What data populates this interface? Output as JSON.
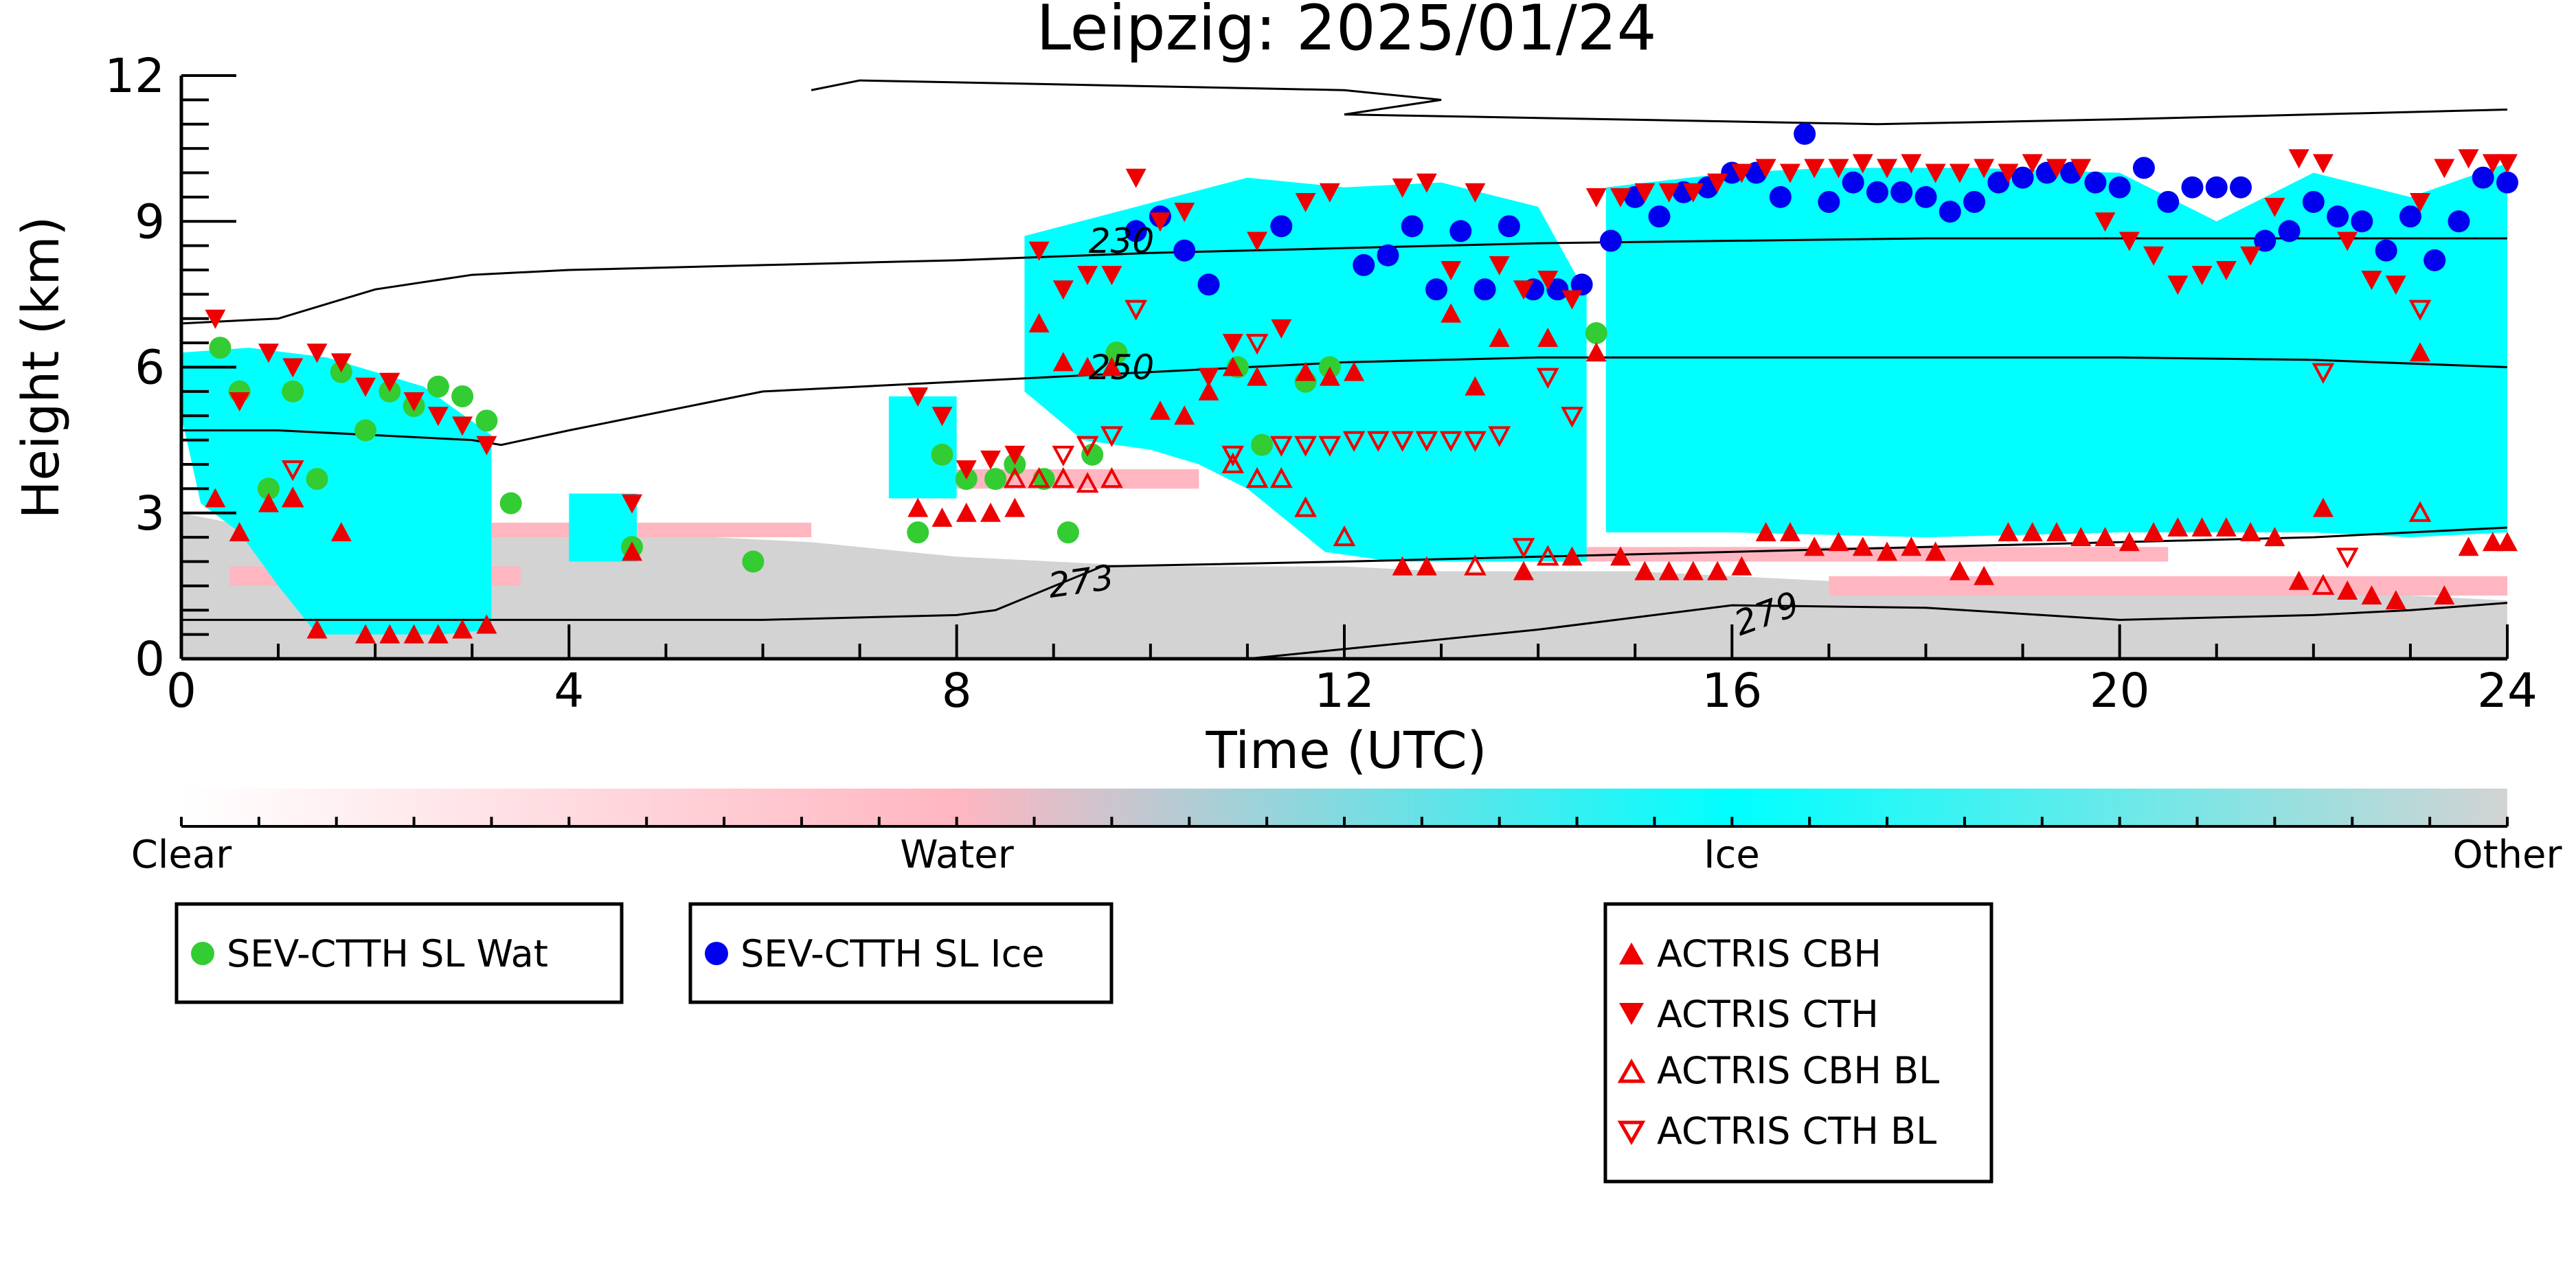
{
  "chart_data": {
    "type": "scatter",
    "title": "Leipzig: 2025/01/24",
    "xlabel": "Time (UTC)",
    "ylabel": "Height (km)",
    "xlim": [
      0,
      24
    ],
    "ylim": [
      0,
      12
    ],
    "xticks": [
      "0",
      "4",
      "8",
      "12",
      "16",
      "20",
      "24"
    ],
    "yticks": [
      "0",
      "3",
      "6",
      "9",
      "12"
    ],
    "colorbar": {
      "labels": [
        "Clear",
        "Water",
        "Ice",
        "Other"
      ],
      "colors": [
        "#ffffff",
        "#ffb6c1",
        "#00ffff",
        "#d3d3d3"
      ]
    },
    "background_classes": [
      {
        "name": "Other",
        "color": "#d3d3d3",
        "x": [
          0,
          0.5,
          1.5,
          2.5,
          3.5,
          4.5,
          5.5,
          6.5,
          7.5,
          8.0,
          9.0,
          10.0,
          11.0,
          12.0,
          13.0,
          14.0,
          15.0,
          16.0,
          17.0,
          18.0,
          19.0,
          20.0,
          21.0,
          22.0,
          23.0,
          24.0
        ],
        "top": [
          3.0,
          2.8,
          2.6,
          2.8,
          2.7,
          2.6,
          2.5,
          2.4,
          2.2,
          2.1,
          2.0,
          1.9,
          1.9,
          1.9,
          1.8,
          1.8,
          1.8,
          1.7,
          1.6,
          1.5,
          1.5,
          1.4,
          1.4,
          1.3,
          1.3,
          1.2
        ]
      },
      {
        "name": "Water",
        "color": "#ffb6c1",
        "bands": [
          {
            "x": [
              0.5,
              3.5
            ],
            "y": [
              1.5,
              1.9
            ]
          },
          {
            "x": [
              3.0,
              6.5
            ],
            "y": [
              2.5,
              2.8
            ]
          },
          {
            "x": [
              7.5,
              10.5
            ],
            "y": [
              3.5,
              3.9
            ]
          },
          {
            "x": [
              12.5,
              20.5
            ],
            "y": [
              2.0,
              2.3
            ]
          },
          {
            "x": [
              17.0,
              24.0
            ],
            "y": [
              1.3,
              1.7
            ]
          }
        ]
      },
      {
        "name": "Ice",
        "color": "#00ffff",
        "polygons": [
          {
            "x": [
              0.0,
              0.7,
              1.5,
              2.5,
              3.2,
              3.2,
              2.7,
              2.0,
              1.4,
              1.0,
              0.6,
              0.2,
              0.0
            ],
            "y": [
              6.3,
              6.4,
              6.2,
              5.6,
              4.6,
              0.6,
              0.5,
              0.5,
              0.5,
              1.5,
              2.6,
              3.2,
              5.0
            ]
          },
          {
            "x": [
              4.0,
              4.7,
              4.7,
              4.0
            ],
            "y": [
              3.4,
              3.4,
              2.0,
              2.0
            ]
          },
          {
            "x": [
              7.3,
              8.0,
              8.0,
              7.3
            ],
            "y": [
              5.4,
              5.4,
              3.3,
              3.3
            ]
          },
          {
            "x": [
              8.7,
              11.0,
              12.0,
              13.0,
              14.0,
              14.5,
              14.5,
              13.5,
              12.5,
              11.8,
              11.0,
              10.5,
              10.0,
              9.3,
              8.7
            ],
            "y": [
              8.7,
              9.9,
              9.7,
              9.8,
              9.3,
              7.5,
              2.0,
              2.0,
              2.0,
              2.2,
              3.5,
              4.0,
              4.3,
              4.5,
              5.5
            ]
          },
          {
            "x": [
              14.7,
              16.0,
              17.0,
              18.5,
              20.0,
              21.0,
              22.0,
              23.0,
              24.0,
              24.0,
              23.0,
              22.0,
              20.0,
              18.0,
              16.0,
              14.7
            ],
            "y": [
              9.7,
              10.0,
              10.1,
              10.1,
              10.0,
              9.0,
              10.0,
              9.5,
              10.2,
              2.6,
              2.5,
              2.6,
              2.6,
              2.5,
              2.6,
              2.6
            ]
          }
        ]
      }
    ],
    "isotherms": [
      {
        "label": "230",
        "x": [
          0,
          1,
          2,
          3,
          4,
          6,
          8,
          10,
          12,
          14,
          16,
          18,
          20,
          22,
          24
        ],
        "y": [
          6.9,
          7.0,
          7.6,
          7.9,
          8.0,
          8.1,
          8.2,
          8.35,
          8.45,
          8.55,
          8.6,
          8.65,
          8.65,
          8.65,
          8.65
        ]
      },
      {
        "label": "250",
        "x": [
          0,
          1,
          2,
          3,
          3.3,
          4,
          6,
          8,
          10,
          12,
          14,
          16,
          18,
          20,
          22,
          24
        ],
        "y": [
          4.7,
          4.7,
          4.6,
          4.5,
          4.4,
          4.7,
          5.5,
          5.7,
          5.9,
          6.1,
          6.2,
          6.2,
          6.2,
          6.2,
          6.15,
          6.0
        ]
      },
      {
        "label": "273",
        "x": [
          0,
          2,
          4,
          6,
          8,
          8.4,
          9.5,
          12,
          14,
          16,
          18,
          20,
          22,
          24
        ],
        "y": [
          0.8,
          0.8,
          0.8,
          0.8,
          0.9,
          1.0,
          1.9,
          2.0,
          2.1,
          2.2,
          2.3,
          2.4,
          2.5,
          2.7
        ]
      },
      {
        "label": "279",
        "x": [
          11,
          14,
          16,
          18,
          20,
          22,
          23,
          24
        ],
        "y": [
          0.0,
          0.6,
          1.1,
          1.05,
          0.8,
          0.9,
          1.0,
          1.15
        ]
      }
    ],
    "upper_contour": {
      "x": [
        6.5,
        7.0,
        12.0,
        13.0,
        12.0,
        17.5,
        20.0,
        24.0
      ],
      "y": [
        11.7,
        11.9,
        11.7,
        11.5,
        11.2,
        11.0,
        11.1,
        11.3
      ]
    },
    "series": [
      {
        "name": "SEV-CTTH SL Wat",
        "marker": "circle",
        "color": "#33cc33",
        "x": [
          0.4,
          0.6,
          0.9,
          1.15,
          1.4,
          1.65,
          1.9,
          2.15,
          2.4,
          2.65,
          2.9,
          3.15,
          3.4,
          4.65,
          5.9,
          7.6,
          7.85,
          8.1,
          8.4,
          8.6,
          8.9,
          9.15,
          9.4,
          9.65,
          10.9,
          11.15,
          11.6,
          11.85,
          14.6
        ],
        "y": [
          6.4,
          5.5,
          3.5,
          5.5,
          3.7,
          5.9,
          4.7,
          5.5,
          5.2,
          5.6,
          5.4,
          4.9,
          3.2,
          2.3,
          2.0,
          2.6,
          4.2,
          3.7,
          3.7,
          4.0,
          3.7,
          2.6,
          4.2,
          6.3,
          6.0,
          4.4,
          5.7,
          6.0,
          6.7
        ]
      },
      {
        "name": "SEV-CTTH SL Ice",
        "marker": "circle",
        "color": "#0000ee",
        "x": [
          9.85,
          10.1,
          10.35,
          10.6,
          11.35,
          12.2,
          12.45,
          12.7,
          12.95,
          13.2,
          13.45,
          13.7,
          13.95,
          14.2,
          14.45,
          14.75,
          15.0,
          15.25,
          15.5,
          15.75,
          16.0,
          16.25,
          16.5,
          16.75,
          17.0,
          17.25,
          17.5,
          17.75,
          18.0,
          18.25,
          18.5,
          18.75,
          19.0,
          19.25,
          19.5,
          19.75,
          20.0,
          20.25,
          20.5,
          20.75,
          21.0,
          21.25,
          21.5,
          21.75,
          22.0,
          22.25,
          22.5,
          22.75,
          23.0,
          23.25,
          23.5,
          23.75,
          24.0
        ],
        "y": [
          8.8,
          9.1,
          8.4,
          7.7,
          8.9,
          8.1,
          8.3,
          8.9,
          7.6,
          8.8,
          7.6,
          8.9,
          7.6,
          7.6,
          7.7,
          8.6,
          9.5,
          9.1,
          9.6,
          9.7,
          10.0,
          10.0,
          9.5,
          10.8,
          9.4,
          9.8,
          9.6,
          9.6,
          9.5,
          9.2,
          9.4,
          9.8,
          9.9,
          10.0,
          10.0,
          9.8,
          9.7,
          10.1,
          9.4,
          9.7,
          9.7,
          9.7,
          8.6,
          8.8,
          9.4,
          9.1,
          9.0,
          8.4,
          9.1,
          8.2,
          9.0,
          9.9,
          9.8
        ]
      },
      {
        "name": "ACTRIS CBH",
        "marker": "triangle-up-filled",
        "color": "#ee0000",
        "x": [
          0.35,
          0.6,
          0.9,
          1.15,
          1.4,
          1.65,
          1.9,
          2.15,
          2.4,
          2.65,
          2.9,
          3.15,
          4.65,
          7.6,
          7.85,
          8.1,
          8.35,
          8.6,
          8.85,
          9.1,
          9.35,
          9.6,
          10.1,
          10.35,
          10.6,
          10.85,
          11.1,
          11.6,
          11.85,
          12.1,
          12.6,
          12.85,
          13.1,
          13.35,
          13.6,
          13.85,
          14.1,
          14.35,
          14.6,
          14.85,
          15.1,
          15.35,
          15.6,
          15.85,
          16.1,
          16.35,
          16.6,
          16.85,
          17.1,
          17.35,
          17.6,
          17.85,
          18.1,
          18.35,
          18.6,
          18.85,
          19.1,
          19.35,
          19.6,
          19.85,
          20.1,
          20.35,
          20.6,
          20.85,
          21.1,
          21.35,
          21.6,
          21.85,
          22.1,
          22.35,
          22.6,
          22.85,
          23.1,
          23.35,
          23.6,
          23.85,
          24.0
        ],
        "y": [
          3.3,
          2.6,
          3.2,
          3.3,
          0.6,
          2.6,
          0.5,
          0.5,
          0.5,
          0.5,
          0.6,
          0.7,
          2.2,
          3.1,
          2.9,
          3.0,
          3.0,
          3.1,
          6.9,
          6.1,
          6.0,
          6.0,
          5.1,
          5.0,
          5.5,
          6.0,
          5.8,
          5.9,
          5.8,
          5.9,
          1.9,
          1.9,
          7.1,
          5.6,
          6.6,
          1.8,
          6.6,
          2.1,
          6.3,
          2.1,
          1.8,
          1.8,
          1.8,
          1.8,
          1.9,
          2.6,
          2.6,
          2.3,
          2.4,
          2.3,
          2.2,
          2.3,
          2.2,
          1.8,
          1.7,
          2.6,
          2.6,
          2.6,
          2.5,
          2.5,
          2.4,
          2.6,
          2.7,
          2.7,
          2.7,
          2.6,
          2.5,
          1.6,
          3.1,
          1.4,
          1.3,
          1.2,
          6.3,
          1.3,
          2.3,
          2.4,
          2.4
        ]
      },
      {
        "name": "ACTRIS CTH",
        "marker": "triangle-down-filled",
        "color": "#ee0000",
        "x": [
          0.35,
          0.6,
          0.9,
          1.15,
          1.4,
          1.65,
          1.9,
          2.15,
          2.4,
          2.65,
          2.9,
          3.15,
          4.65,
          7.6,
          7.85,
          8.1,
          8.35,
          8.6,
          8.85,
          9.1,
          9.35,
          9.6,
          9.85,
          10.1,
          10.35,
          10.6,
          10.85,
          11.1,
          11.35,
          11.6,
          11.85,
          12.6,
          12.85,
          13.1,
          13.35,
          13.6,
          13.85,
          14.1,
          14.35,
          14.6,
          14.85,
          15.1,
          15.35,
          15.6,
          15.85,
          16.1,
          16.35,
          16.6,
          16.85,
          17.1,
          17.35,
          17.6,
          17.85,
          18.1,
          18.35,
          18.6,
          18.85,
          19.1,
          19.35,
          19.6,
          19.85,
          20.1,
          20.35,
          20.6,
          20.85,
          21.1,
          21.35,
          21.6,
          21.85,
          22.1,
          22.35,
          22.6,
          22.85,
          23.1,
          23.35,
          23.6,
          23.85,
          24.0
        ],
        "y": [
          7.0,
          5.3,
          6.3,
          6.0,
          6.3,
          6.1,
          5.6,
          5.7,
          5.3,
          5.0,
          4.8,
          4.4,
          3.2,
          5.4,
          5.0,
          3.9,
          4.1,
          4.2,
          8.4,
          7.6,
          7.9,
          7.9,
          9.9,
          9.0,
          9.2,
          5.8,
          6.5,
          8.6,
          6.8,
          9.4,
          9.6,
          9.7,
          9.8,
          8.0,
          9.6,
          8.1,
          7.6,
          7.8,
          7.4,
          9.5,
          9.5,
          9.6,
          9.6,
          9.6,
          9.8,
          10.0,
          10.1,
          10.0,
          10.1,
          10.1,
          10.2,
          10.1,
          10.2,
          10.0,
          10.0,
          10.1,
          10.0,
          10.2,
          10.1,
          10.1,
          9.0,
          8.6,
          8.3,
          7.7,
          7.9,
          8.0,
          8.3,
          9.3,
          10.3,
          10.2,
          8.6,
          7.8,
          7.7,
          9.4,
          10.1,
          10.3,
          10.2,
          10.2
        ]
      },
      {
        "name": "ACTRIS CBH BL",
        "marker": "triangle-up-open",
        "color": "#ee0000",
        "x": [
          1.15,
          8.6,
          8.85,
          9.1,
          9.35,
          9.6,
          10.85,
          11.1,
          11.35,
          11.6,
          12.0,
          13.35,
          14.1,
          22.1,
          23.1
        ],
        "y": [
          3.3,
          3.7,
          3.7,
          3.7,
          3.6,
          3.7,
          4.0,
          3.7,
          3.7,
          3.1,
          2.5,
          1.9,
          2.1,
          1.5,
          3.0
        ]
      },
      {
        "name": "ACTRIS CTH BL",
        "marker": "triangle-down-open",
        "color": "#ee0000",
        "x": [
          1.15,
          9.1,
          9.35,
          9.6,
          9.85,
          10.85,
          11.1,
          11.35,
          11.6,
          11.85,
          12.1,
          12.35,
          12.6,
          12.85,
          13.1,
          13.35,
          13.6,
          13.85,
          14.1,
          14.35,
          22.1,
          22.35,
          23.1
        ],
        "y": [
          3.9,
          4.2,
          4.4,
          4.6,
          7.2,
          4.2,
          6.5,
          4.4,
          4.4,
          4.4,
          4.5,
          4.5,
          4.5,
          4.5,
          4.5,
          4.5,
          4.6,
          2.3,
          5.8,
          5.0,
          5.9,
          2.1,
          7.2
        ]
      }
    ],
    "legends": [
      {
        "entries": [
          "SEV-CTTH SL Wat"
        ]
      },
      {
        "entries": [
          "SEV-CTTH SL Ice"
        ]
      },
      {
        "entries": [
          "ACTRIS CBH",
          "ACTRIS CTH",
          "ACTRIS CBH BL",
          "ACTRIS CTH BL"
        ]
      }
    ]
  }
}
